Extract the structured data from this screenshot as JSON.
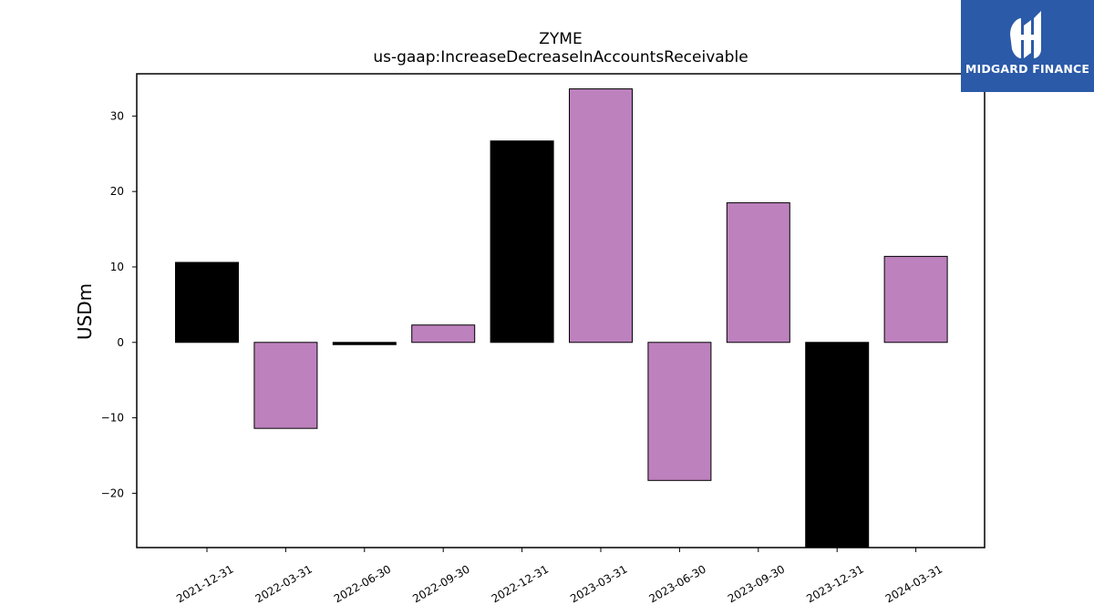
{
  "brand": {
    "name": "MIDGARD FINANCE",
    "background": "#2b5aa8",
    "text_color": "#ffffff"
  },
  "chart_data": {
    "type": "bar",
    "title": "ZYME",
    "subtitle": "us-gaap:IncreaseDecreaseInAccountsReceivable",
    "xlabel": "",
    "ylabel": "USDm",
    "categories": [
      "2021-12-31",
      "2022-03-31",
      "2022-06-30",
      "2022-09-30",
      "2022-12-31",
      "2023-03-31",
      "2023-06-30",
      "2023-09-30",
      "2023-12-31",
      "2024-03-31"
    ],
    "values": [
      10.6,
      -11.4,
      -0.3,
      2.3,
      26.7,
      33.6,
      -18.3,
      18.5,
      -29.5,
      11.4
    ],
    "bar_colors": [
      "#000000",
      "#bd81bd",
      "#000000",
      "#bd81bd",
      "#000000",
      "#bd81bd",
      "#bd81bd",
      "#bd81bd",
      "#000000",
      "#bd81bd"
    ],
    "ylim": [
      -27.2,
      35.6
    ],
    "yticks": [
      -20,
      -10,
      0,
      10,
      20,
      30
    ],
    "ytick_labels": [
      "−20",
      "−10",
      "0",
      "10",
      "20",
      "30"
    ],
    "grid": false,
    "legend": "none"
  }
}
